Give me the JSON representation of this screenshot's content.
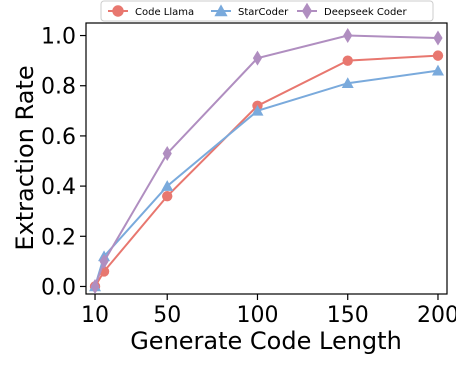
{
  "chart_data": {
    "type": "line",
    "title": "",
    "xlabel": "Generate Code Length",
    "ylabel": "Extraction Rate",
    "x": [
      10,
      15,
      50,
      100,
      150,
      200
    ],
    "xticks": [
      10,
      50,
      100,
      150,
      200
    ],
    "xlim": [
      5,
      205
    ],
    "ylim": [
      -0.03,
      1.05
    ],
    "yticks": [
      0.0,
      0.2,
      0.4,
      0.6,
      0.8,
      1.0
    ],
    "ytick_labels": [
      "0.0",
      "0.2",
      "0.4",
      "0.6",
      "0.8",
      "1.0"
    ],
    "grid": false,
    "legend_position": "top",
    "series": [
      {
        "name": "Code Llama",
        "color": "#e8776f",
        "marker": "circle",
        "values": [
          0.0,
          0.06,
          0.36,
          0.72,
          0.9,
          0.92
        ]
      },
      {
        "name": "StarCoder",
        "color": "#7aaadc",
        "marker": "triangle",
        "values": [
          0.0,
          0.12,
          0.4,
          0.7,
          0.81,
          0.86
        ]
      },
      {
        "name": "Deepseek Coder",
        "color": "#b08ec0",
        "marker": "diamond",
        "values": [
          0.0,
          0.1,
          0.53,
          0.91,
          1.0,
          0.99
        ]
      }
    ]
  }
}
